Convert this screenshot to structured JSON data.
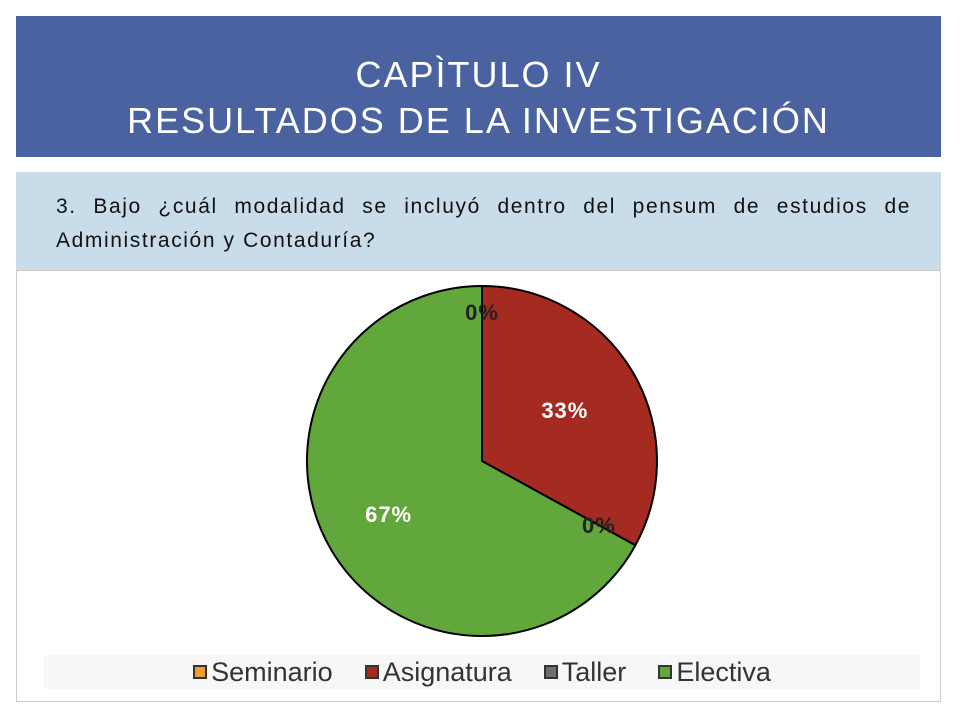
{
  "header": {
    "line1": "CAPÌTULO IV",
    "line2": "RESULTADOS DE LA INVESTIGACIÓN"
  },
  "question": {
    "text": "3. Bajo ¿cuál modalidad se incluyó dentro del pensum de estudios de Administración y Contaduría?"
  },
  "colors": {
    "header_bg": "#4a62a0",
    "question_bg": "#c9dcea"
  },
  "chart_data": {
    "type": "pie",
    "categories": [
      "Seminario",
      "Asignatura",
      "Taller",
      "Electiva"
    ],
    "values": [
      0,
      33,
      0,
      67
    ],
    "labels": [
      "0%",
      "33%",
      "0%",
      "67%"
    ],
    "colors": [
      "#f39c2f",
      "#a52a22",
      "#6e6e6e",
      "#62a73b"
    ],
    "legend_position": "bottom"
  }
}
